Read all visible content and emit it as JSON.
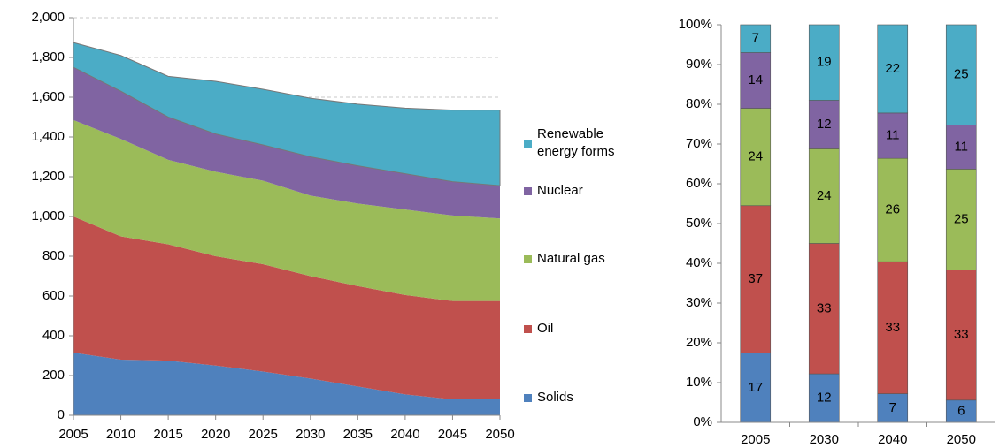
{
  "chart_data": [
    {
      "type": "stacked_area",
      "x": [
        2005,
        2010,
        2015,
        2020,
        2025,
        2030,
        2035,
        2040,
        2045,
        2050
      ],
      "series": [
        {
          "name": "Solids",
          "color": "#4f81bd",
          "values": [
            315,
            280,
            275,
            250,
            220,
            185,
            145,
            105,
            80,
            80
          ]
        },
        {
          "name": "Oil",
          "color": "#c0504d",
          "values": [
            685,
            620,
            585,
            550,
            540,
            515,
            505,
            500,
            495,
            495
          ]
        },
        {
          "name": "Natural gas",
          "color": "#9bbb59",
          "values": [
            485,
            490,
            425,
            425,
            420,
            405,
            415,
            430,
            430,
            415
          ]
        },
        {
          "name": "Nuclear",
          "color": "#8064a2",
          "values": [
            265,
            240,
            215,
            190,
            180,
            195,
            190,
            180,
            170,
            165
          ]
        },
        {
          "name": "Renewable energy forms",
          "color": "#4bacc6",
          "values": [
            125,
            180,
            205,
            265,
            280,
            295,
            310,
            330,
            360,
            380
          ]
        }
      ],
      "xlim": [
        2005,
        2050
      ],
      "xticks": [
        2005,
        2010,
        2015,
        2020,
        2025,
        2030,
        2035,
        2040,
        2045,
        2050
      ],
      "ylim": [
        0,
        2000
      ],
      "yticks": [
        0,
        200,
        400,
        600,
        800,
        {
          "value": 1000,
          "label": "1,000"
        },
        {
          "value": 1200,
          "label": "1,200"
        },
        {
          "value": 1400,
          "label": "1,400"
        },
        {
          "value": 1600,
          "label": "1,600"
        },
        {
          "value": 1800,
          "label": "1,800"
        },
        {
          "value": 2000,
          "label": "2,000"
        }
      ],
      "grid": true,
      "legend": "right"
    },
    {
      "type": "stacked_bar",
      "categories": [
        "2005",
        "2030",
        "2040",
        "2050"
      ],
      "series": [
        {
          "name": "Solids",
          "color": "#4f81bd",
          "values": [
            17.4,
            12.2,
            7.2,
            5.6
          ],
          "value_labels": [
            "17",
            "12",
            "7",
            "6"
          ]
        },
        {
          "name": "Oil",
          "color": "#c0504d",
          "values": [
            37.1,
            32.8,
            33.2,
            32.7
          ],
          "value_labels": [
            "37",
            "33",
            "33",
            "33"
          ]
        },
        {
          "name": "Natural gas",
          "color": "#9bbb59",
          "values": [
            24.5,
            23.8,
            26.0,
            25.4
          ],
          "value_labels": [
            "24",
            "24",
            "26",
            "25"
          ]
        },
        {
          "name": "Nuclear",
          "color": "#8064a2",
          "values": [
            14.0,
            12.2,
            11.4,
            11.1
          ],
          "value_labels": [
            "14",
            "12",
            "11",
            "11"
          ]
        },
        {
          "name": "Renewable energy forms",
          "color": "#4bacc6",
          "values": [
            7.0,
            19.0,
            22.2,
            25.2
          ],
          "value_labels": [
            "7",
            "19",
            "22",
            "25"
          ]
        }
      ],
      "ylim": [
        0,
        100
      ],
      "yticks": [
        {
          "value": 0,
          "label": "0%"
        },
        {
          "value": 10,
          "label": "10%"
        },
        {
          "value": 20,
          "label": "20%"
        },
        {
          "value": 30,
          "label": "30%"
        },
        {
          "value": 40,
          "label": "40%"
        },
        {
          "value": 50,
          "label": "50%"
        },
        {
          "value": 60,
          "label": "60%"
        },
        {
          "value": 70,
          "label": "70%"
        },
        {
          "value": 80,
          "label": "80%"
        },
        {
          "value": 90,
          "label": "90%"
        },
        {
          "value": 100,
          "label": "100%"
        }
      ],
      "grid": false
    }
  ]
}
